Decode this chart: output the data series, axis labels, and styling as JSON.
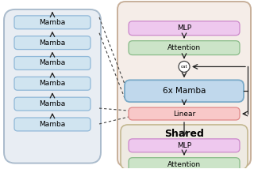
{
  "bg_color": "#ffffff",
  "left_panel_bg": "#e8edf3",
  "left_panel_border": "#aabbcc",
  "right_outer_bg": "#f5ede8",
  "right_outer_border": "#c8b09a",
  "shared_bg": "#eeeae2",
  "shared_border": "#c0b48a",
  "mamba_box_color": "#d0e4f0",
  "mamba_box_border": "#90b8d8",
  "mamba6x_color": "#c0d8ec",
  "mamba6x_border": "#7aaac8",
  "attention_color": "#cce4c8",
  "attention_border": "#88bb88",
  "linear_color": "#f8c8c8",
  "linear_border": "#e08888",
  "mlp_color": "#eec8ee",
  "mlp_border": "#cc88cc",
  "cat_circle_color": "#ffffff",
  "cat_circle_border": "#444444",
  "arrow_color": "#222222",
  "dash_color": "#444444",
  "left_mamba_labels": [
    "Mamba",
    "Mamba",
    "Mamba",
    "Mamba",
    "Mamba",
    "Mamba"
  ]
}
